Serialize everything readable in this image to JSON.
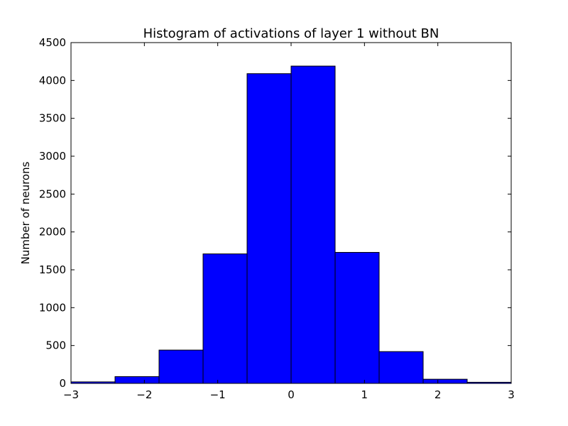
{
  "chart_data": {
    "type": "bar",
    "title": "Histogram of activations of layer 1  without BN",
    "xlabel": "",
    "ylabel": "Number of neurons",
    "xlim": [
      -3,
      3
    ],
    "ylim": [
      0,
      4500
    ],
    "x_ticks": [
      -3,
      -2,
      -1,
      0,
      1,
      2,
      3
    ],
    "x_tick_labels": [
      "−3",
      "−2",
      "−1",
      "0",
      "1",
      "2",
      "3"
    ],
    "y_ticks": [
      0,
      500,
      1000,
      1500,
      2000,
      2500,
      3000,
      3500,
      4000,
      4500
    ],
    "y_tick_labels": [
      "0",
      "500",
      "1000",
      "1500",
      "2000",
      "2500",
      "3000",
      "3500",
      "4000",
      "4500"
    ],
    "bin_edges": [
      -3,
      -2.4,
      -1.8,
      -1.2,
      -0.6,
      0,
      0.6,
      1.2,
      1.8,
      2.4,
      3
    ],
    "values": [
      20,
      90,
      440,
      1710,
      4090,
      4190,
      1730,
      420,
      55,
      15
    ],
    "bar_color": "#0000ff",
    "edge_color": "#000000",
    "grid": false
  }
}
